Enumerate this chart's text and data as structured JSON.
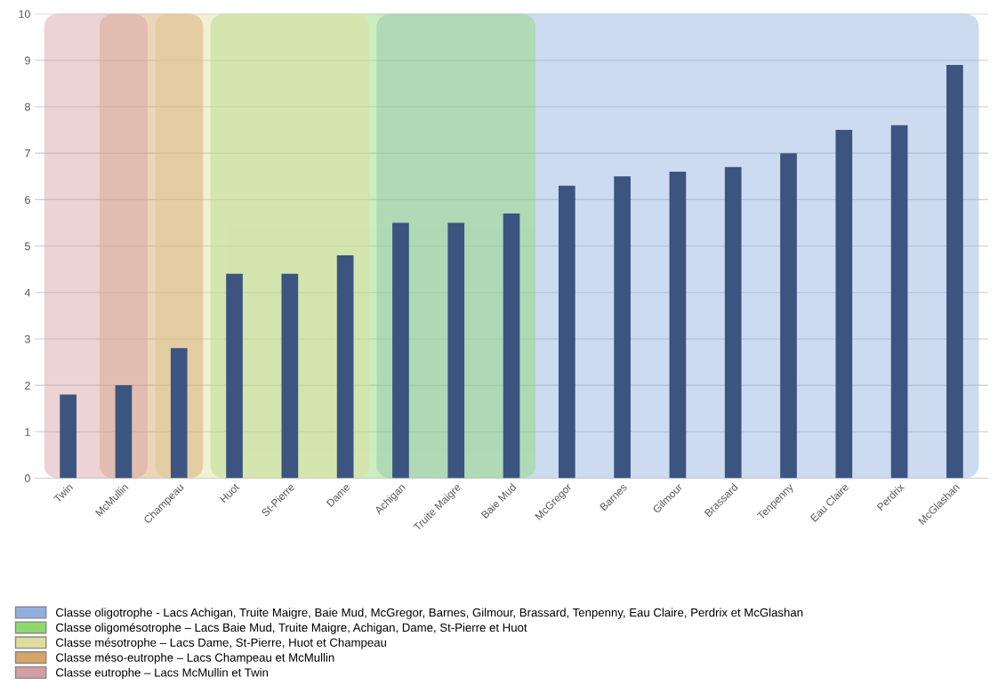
{
  "chart_data": {
    "type": "bar",
    "categories": [
      "Twin",
      "McMullin",
      "Champeau",
      "Huot",
      "St-Pierre",
      "Dame",
      "Achigan",
      "Truite Maigre",
      "Baie Mud",
      "McGregor",
      "Barnes",
      "Gilmour",
      "Brassard",
      "Tenpenny",
      "Eau Claire",
      "Perdrix",
      "McGlashan"
    ],
    "values": [
      1.8,
      2.0,
      2.8,
      4.4,
      4.4,
      4.8,
      5.5,
      5.5,
      5.7,
      6.3,
      6.5,
      6.6,
      6.7,
      7.0,
      7.5,
      7.6,
      8.9
    ],
    "color": "#3b5580",
    "ylim": [
      0,
      10
    ],
    "yticks": [
      0,
      1,
      2,
      3,
      4,
      5,
      6,
      7,
      8,
      9,
      10
    ],
    "grid": "y",
    "legend": "bottom",
    "bands": [
      {
        "axis": "x",
        "from": "Achigan",
        "to": "McGlashan",
        "label": "Classe oligotrophe - Lacs Achigan, Truite Maigre, Baie Mud, McGregor, Barnes, Gilmour, Brassard, Tenpenny, Eau Claire, Perdrix et McGlashan",
        "color": "#8fb0de"
      },
      {
        "axis": "x",
        "from": "Huot",
        "to": "Baie Mud",
        "label": "Classe oligomésotrophe – Lacs Baie Mud, Truite Maigre, Achigan, Dame, St-Pierre et Huot",
        "color": "#8ed86e"
      },
      {
        "axis": "x",
        "from": "Champeau",
        "to": "Dame",
        "label": "Classe mésotrophe – Lacs Dame, St-Pierre, Huot et Champeau",
        "color": "#dedd9c"
      },
      {
        "axis": "x",
        "from": "McMullin",
        "to": "Champeau",
        "label": "Classe méso-eutrophe – Lacs Champeau et McMullin",
        "color": "#d8a36a"
      },
      {
        "axis": "x",
        "from": "Twin",
        "to": "McMullin",
        "label": "Classe eutrophe – Lacs McMullin et Twin",
        "color": "#d49ea3"
      }
    ]
  }
}
